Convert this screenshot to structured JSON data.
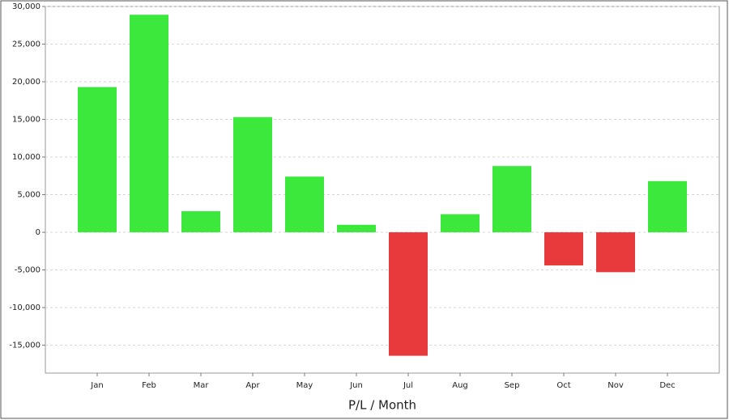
{
  "chart_data": {
    "type": "bar",
    "x_label": "P/L / Month",
    "categories": [
      "Jan",
      "Feb",
      "Mar",
      "Apr",
      "May",
      "Jun",
      "Jul",
      "Aug",
      "Sep",
      "Oct",
      "Nov",
      "Dec"
    ],
    "values": [
      19300,
      28900,
      2800,
      15300,
      7400,
      1000,
      -16400,
      2400,
      8800,
      -4400,
      -5300,
      6800
    ],
    "colors": [
      "#3de83d",
      "#3de83d",
      "#3de83d",
      "#3de83d",
      "#3de83d",
      "#3de83d",
      "#e8393c",
      "#3de83d",
      "#3de83d",
      "#e8393c",
      "#e8393c",
      "#3de83d"
    ],
    "ylim": [
      -18700,
      30000
    ],
    "yticks": [
      {
        "value": -15000,
        "label": "-15,000"
      },
      {
        "value": -10000,
        "label": "-10,000"
      },
      {
        "value": -5000,
        "label": "-5,000"
      },
      0,
      {
        "value": 5000,
        "label": "5,000"
      },
      {
        "value": 10000,
        "label": "10,000"
      },
      {
        "value": 15000,
        "label": "15,000"
      },
      {
        "value": 20000,
        "label": "20,000"
      },
      {
        "value": 25000,
        "label": "25,000"
      },
      {
        "value": 30000,
        "label": "30,000"
      }
    ],
    "grid": true
  }
}
